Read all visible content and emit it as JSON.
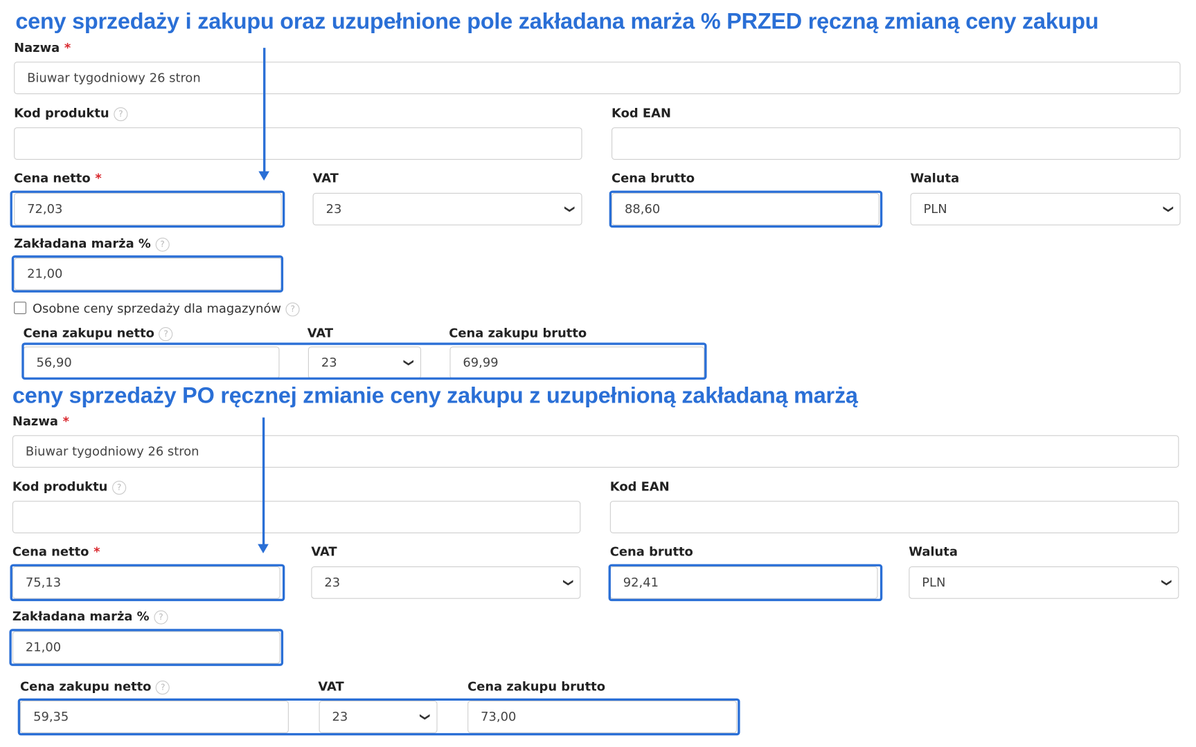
{
  "headings": {
    "before": "ceny sprzedaży i zakupu oraz uzupełnione pole zakładana marża % PRZED ręczną zmianą ceny zakupu",
    "after": "ceny sprzedaży PO ręcznej zmianie ceny zakupu z uzupełnioną zakładaną marżą"
  },
  "labels": {
    "nazwa": "Nazwa",
    "kod_produktu": "Kod produktu",
    "kod_ean": "Kod EAN",
    "cena_netto": "Cena netto",
    "vat": "VAT",
    "cena_brutto": "Cena brutto",
    "waluta": "Waluta",
    "marza": "Zakładana marża %",
    "osobne": "Osobne ceny sprzedaży dla magazynów",
    "cena_zakupu_netto": "Cena zakupu netto",
    "cena_zakupu_brutto": "Cena zakupu brutto",
    "required_mark": "*",
    "help_mark": "?"
  },
  "before": {
    "nazwa": "Biuwar tygodniowy 26 stron",
    "kod_produktu": "",
    "kod_ean": "",
    "cena_netto": "72,03",
    "vat": "23",
    "cena_brutto": "88,60",
    "waluta": "PLN",
    "marza": "21,00",
    "osobne_checked": false,
    "cena_zakupu_netto": "56,90",
    "vat_zakupu": "23",
    "cena_zakupu_brutto": "69,99"
  },
  "after": {
    "nazwa": "Biuwar tygodniowy 26 stron",
    "kod_produktu": "",
    "kod_ean": "",
    "cena_netto": "75,13",
    "vat": "23",
    "cena_brutto": "92,41",
    "waluta": "PLN",
    "marza": "21,00",
    "cena_zakupu_netto": "59,35",
    "vat_zakupu": "23",
    "cena_zakupu_brutto": "73,00"
  },
  "icons": {
    "chevron": "chevron-down-icon",
    "arrow": "arrow-down-icon",
    "help": "help-circle-icon"
  },
  "colors": {
    "annotation_blue": "#2a6fd6",
    "required_red": "#d9262c"
  }
}
